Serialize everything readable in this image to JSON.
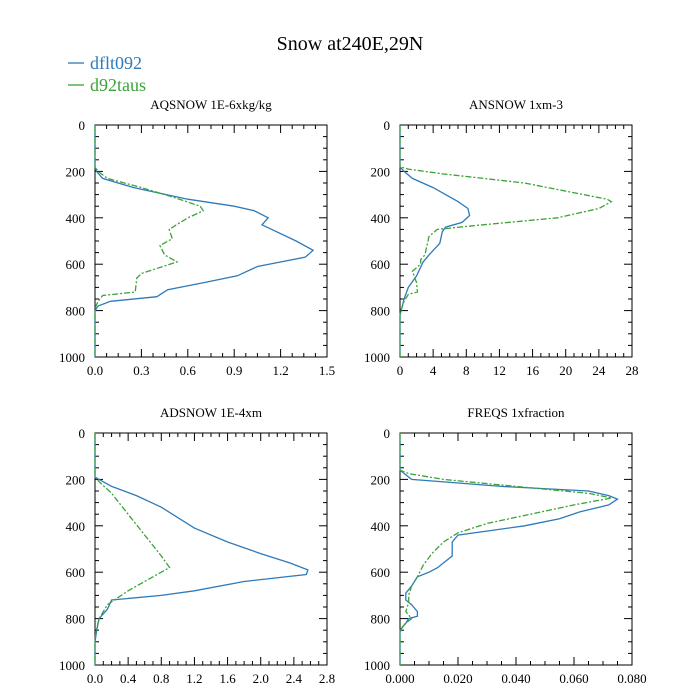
{
  "colors": {
    "dflt092": "#2f7ab9",
    "d92taus": "#3aa337"
  },
  "chart_data": {
    "title": "Snow at240E,29N",
    "legend": [
      {
        "name": "dflt092",
        "color": "#2f7ab9",
        "style": "solid"
      },
      {
        "name": "d92taus",
        "color": "#3aa337",
        "style": "dashed"
      }
    ],
    "legend_placement": "top-left",
    "panels": [
      {
        "type": "line",
        "title": "AQSNOW  1E-6xkg/kg",
        "xlim": [
          0,
          1.5
        ],
        "xticks": [
          0,
          0.3,
          0.6,
          0.9,
          1.2,
          1.5
        ],
        "xtick_labels": [
          "0.0",
          "0.3",
          "0.6",
          "0.9",
          "1.2",
          "1.5"
        ],
        "ylim": [
          1000,
          0
        ],
        "yticks": [
          0,
          200,
          400,
          600,
          800,
          1000
        ],
        "ytick_labels": [
          "0",
          "200",
          "400",
          "600",
          "800",
          "1000"
        ],
        "series": [
          {
            "name": "dflt092",
            "points": [
              [
                0,
                0
              ],
              [
                0,
                180
              ],
              [
                0.01,
                200
              ],
              [
                0.05,
                230
              ],
              [
                0.25,
                270
              ],
              [
                0.6,
                320
              ],
              [
                0.9,
                350
              ],
              [
                1.03,
                370
              ],
              [
                1.12,
                400
              ],
              [
                1.08,
                430
              ],
              [
                1.3,
                500
              ],
              [
                1.41,
                540
              ],
              [
                1.36,
                570
              ],
              [
                1.05,
                610
              ],
              [
                0.92,
                650
              ],
              [
                0.7,
                680
              ],
              [
                0.47,
                710
              ],
              [
                0.4,
                740
              ],
              [
                0.1,
                760
              ],
              [
                0.02,
                780
              ],
              [
                0.0,
                800
              ],
              [
                0,
                1000
              ]
            ]
          },
          {
            "name": "d92taus",
            "points": [
              [
                0,
                0
              ],
              [
                0,
                180
              ],
              [
                0.02,
                200
              ],
              [
                0.08,
                230
              ],
              [
                0.3,
                270
              ],
              [
                0.5,
                310
              ],
              [
                0.68,
                350
              ],
              [
                0.7,
                370
              ],
              [
                0.6,
                400
              ],
              [
                0.48,
                450
              ],
              [
                0.5,
                490
              ],
              [
                0.42,
                520
              ],
              [
                0.45,
                560
              ],
              [
                0.53,
                590
              ],
              [
                0.3,
                640
              ],
              [
                0.27,
                660
              ],
              [
                0.26,
                720
              ],
              [
                0.05,
                735
              ],
              [
                0.02,
                760
              ],
              [
                0.0,
                790
              ],
              [
                0,
                1000
              ]
            ]
          }
        ]
      },
      {
        "type": "line",
        "title": "ANSNOW  1xm-3",
        "xlim": [
          0,
          28
        ],
        "xticks": [
          0,
          4,
          8,
          12,
          16,
          20,
          24,
          28
        ],
        "xtick_labels": [
          "0",
          "4",
          "8",
          "12",
          "16",
          "20",
          "24",
          "28"
        ],
        "ylim": [
          1000,
          0
        ],
        "yticks": [
          0,
          200,
          400,
          600,
          800,
          1000
        ],
        "ytick_labels": [
          "0",
          "200",
          "400",
          "600",
          "800",
          "1000"
        ],
        "series": [
          {
            "name": "dflt092",
            "points": [
              [
                0,
                0
              ],
              [
                0,
                180
              ],
              [
                0.5,
                200
              ],
              [
                1.5,
                230
              ],
              [
                4,
                270
              ],
              [
                7,
                330
              ],
              [
                8.2,
                360
              ],
              [
                8.4,
                390
              ],
              [
                7.5,
                420
              ],
              [
                5.5,
                440
              ],
              [
                5.1,
                460
              ],
              [
                4.8,
                510
              ],
              [
                3.5,
                560
              ],
              [
                2.8,
                590
              ],
              [
                2,
                650
              ],
              [
                1,
                700
              ],
              [
                0.5,
                750
              ],
              [
                0.2,
                790
              ],
              [
                0,
                820
              ],
              [
                0,
                1000
              ]
            ]
          },
          {
            "name": "d92taus",
            "points": [
              [
                0,
                0
              ],
              [
                0,
                180
              ],
              [
                1,
                190
              ],
              [
                5,
                210
              ],
              [
                15,
                250
              ],
              [
                25,
                320
              ],
              [
                25.5,
                330
              ],
              [
                24,
                360
              ],
              [
                19,
                400
              ],
              [
                10,
                430
              ],
              [
                4.5,
                450
              ],
              [
                3.5,
                480
              ],
              [
                3,
                560
              ],
              [
                2.5,
                580
              ],
              [
                2.5,
                600
              ],
              [
                1.5,
                630
              ],
              [
                2,
                680
              ],
              [
                2.1,
                720
              ],
              [
                1,
                730
              ],
              [
                0.5,
                760
              ],
              [
                0.1,
                800
              ],
              [
                0,
                830
              ],
              [
                0,
                1000
              ]
            ]
          }
        ]
      },
      {
        "type": "line",
        "title": "ADSNOW  1E-4xm",
        "xlim": [
          0,
          2.8
        ],
        "xticks": [
          0,
          0.4,
          0.8,
          1.2,
          1.6,
          2.0,
          2.4,
          2.8
        ],
        "xtick_labels": [
          "0.0",
          "0.4",
          "0.8",
          "1.2",
          "1.6",
          "2.0",
          "2.4",
          "2.8"
        ],
        "ylim": [
          1000,
          0
        ],
        "yticks": [
          0,
          200,
          400,
          600,
          800,
          1000
        ],
        "ytick_labels": [
          "0",
          "200",
          "400",
          "600",
          "800",
          "1000"
        ],
        "series": [
          {
            "name": "dflt092",
            "points": [
              [
                0,
                0
              ],
              [
                0,
                190
              ],
              [
                0.05,
                200
              ],
              [
                0.2,
                230
              ],
              [
                0.5,
                270
              ],
              [
                0.8,
                320
              ],
              [
                1.2,
                410
              ],
              [
                1.6,
                470
              ],
              [
                2.0,
                520
              ],
              [
                2.35,
                560
              ],
              [
                2.57,
                590
              ],
              [
                2.55,
                610
              ],
              [
                1.8,
                640
              ],
              [
                1.2,
                680
              ],
              [
                0.8,
                700
              ],
              [
                0.2,
                720
              ],
              [
                0.15,
                760
              ],
              [
                0.05,
                800
              ],
              [
                0.02,
                850
              ],
              [
                0,
                900
              ],
              [
                0,
                1000
              ]
            ]
          },
          {
            "name": "d92taus",
            "points": [
              [
                0,
                0
              ],
              [
                0,
                190
              ],
              [
                0.05,
                210
              ],
              [
                0.2,
                260
              ],
              [
                0.4,
                350
              ],
              [
                0.6,
                440
              ],
              [
                0.8,
                530
              ],
              [
                0.9,
                580
              ],
              [
                0.85,
                590
              ],
              [
                0.7,
                620
              ],
              [
                0.4,
                680
              ],
              [
                0.15,
                740
              ],
              [
                0.05,
                800
              ],
              [
                0.01,
                860
              ],
              [
                0,
                900
              ],
              [
                0,
                1000
              ]
            ]
          }
        ]
      },
      {
        "type": "line",
        "title": "FREQS  1xfraction",
        "xlim": [
          0,
          0.08
        ],
        "xticks": [
          0,
          0.02,
          0.04,
          0.06,
          0.08
        ],
        "xtick_labels": [
          "0.000",
          "0.020",
          "0.040",
          "0.060",
          "0.080"
        ],
        "ylim": [
          1000,
          0
        ],
        "yticks": [
          0,
          200,
          400,
          600,
          800,
          1000
        ],
        "ytick_labels": [
          "0",
          "200",
          "400",
          "600",
          "800",
          "1000"
        ],
        "series": [
          {
            "name": "dflt092",
            "points": [
              [
                0,
                0
              ],
              [
                0,
                160
              ],
              [
                0.002,
                180
              ],
              [
                0.004,
                200
              ],
              [
                0.035,
                230
              ],
              [
                0.065,
                250
              ],
              [
                0.072,
                270
              ],
              [
                0.075,
                285
              ],
              [
                0.072,
                310
              ],
              [
                0.062,
                340
              ],
              [
                0.055,
                370
              ],
              [
                0.043,
                400
              ],
              [
                0.02,
                440
              ],
              [
                0.018,
                470
              ],
              [
                0.018,
                530
              ],
              [
                0.015,
                560
              ],
              [
                0.013,
                580
              ],
              [
                0.01,
                600
              ],
              [
                0.006,
                620
              ],
              [
                0.004,
                660
              ],
              [
                0.002,
                690
              ],
              [
                0.002,
                720
              ],
              [
                0.004,
                740
              ],
              [
                0.006,
                770
              ],
              [
                0.006,
                790
              ],
              [
                0.003,
                800
              ],
              [
                0.002,
                820
              ],
              [
                0,
                850
              ],
              [
                0,
                1000
              ]
            ]
          },
          {
            "name": "d92taus",
            "points": [
              [
                0,
                0
              ],
              [
                0,
                160
              ],
              [
                0.003,
                175
              ],
              [
                0.015,
                200
              ],
              [
                0.04,
                230
              ],
              [
                0.065,
                260
              ],
              [
                0.073,
                280
              ],
              [
                0.06,
                310
              ],
              [
                0.045,
                350
              ],
              [
                0.03,
                390
              ],
              [
                0.02,
                430
              ],
              [
                0.015,
                470
              ],
              [
                0.011,
                520
              ],
              [
                0.008,
                570
              ],
              [
                0.006,
                620
              ],
              [
                0.004,
                660
              ],
              [
                0.003,
                700
              ],
              [
                0.003,
                730
              ],
              [
                0.002,
                770
              ],
              [
                0.004,
                800
              ],
              [
                0.001,
                830
              ],
              [
                0,
                860
              ],
              [
                0,
                1000
              ]
            ]
          }
        ]
      }
    ]
  }
}
